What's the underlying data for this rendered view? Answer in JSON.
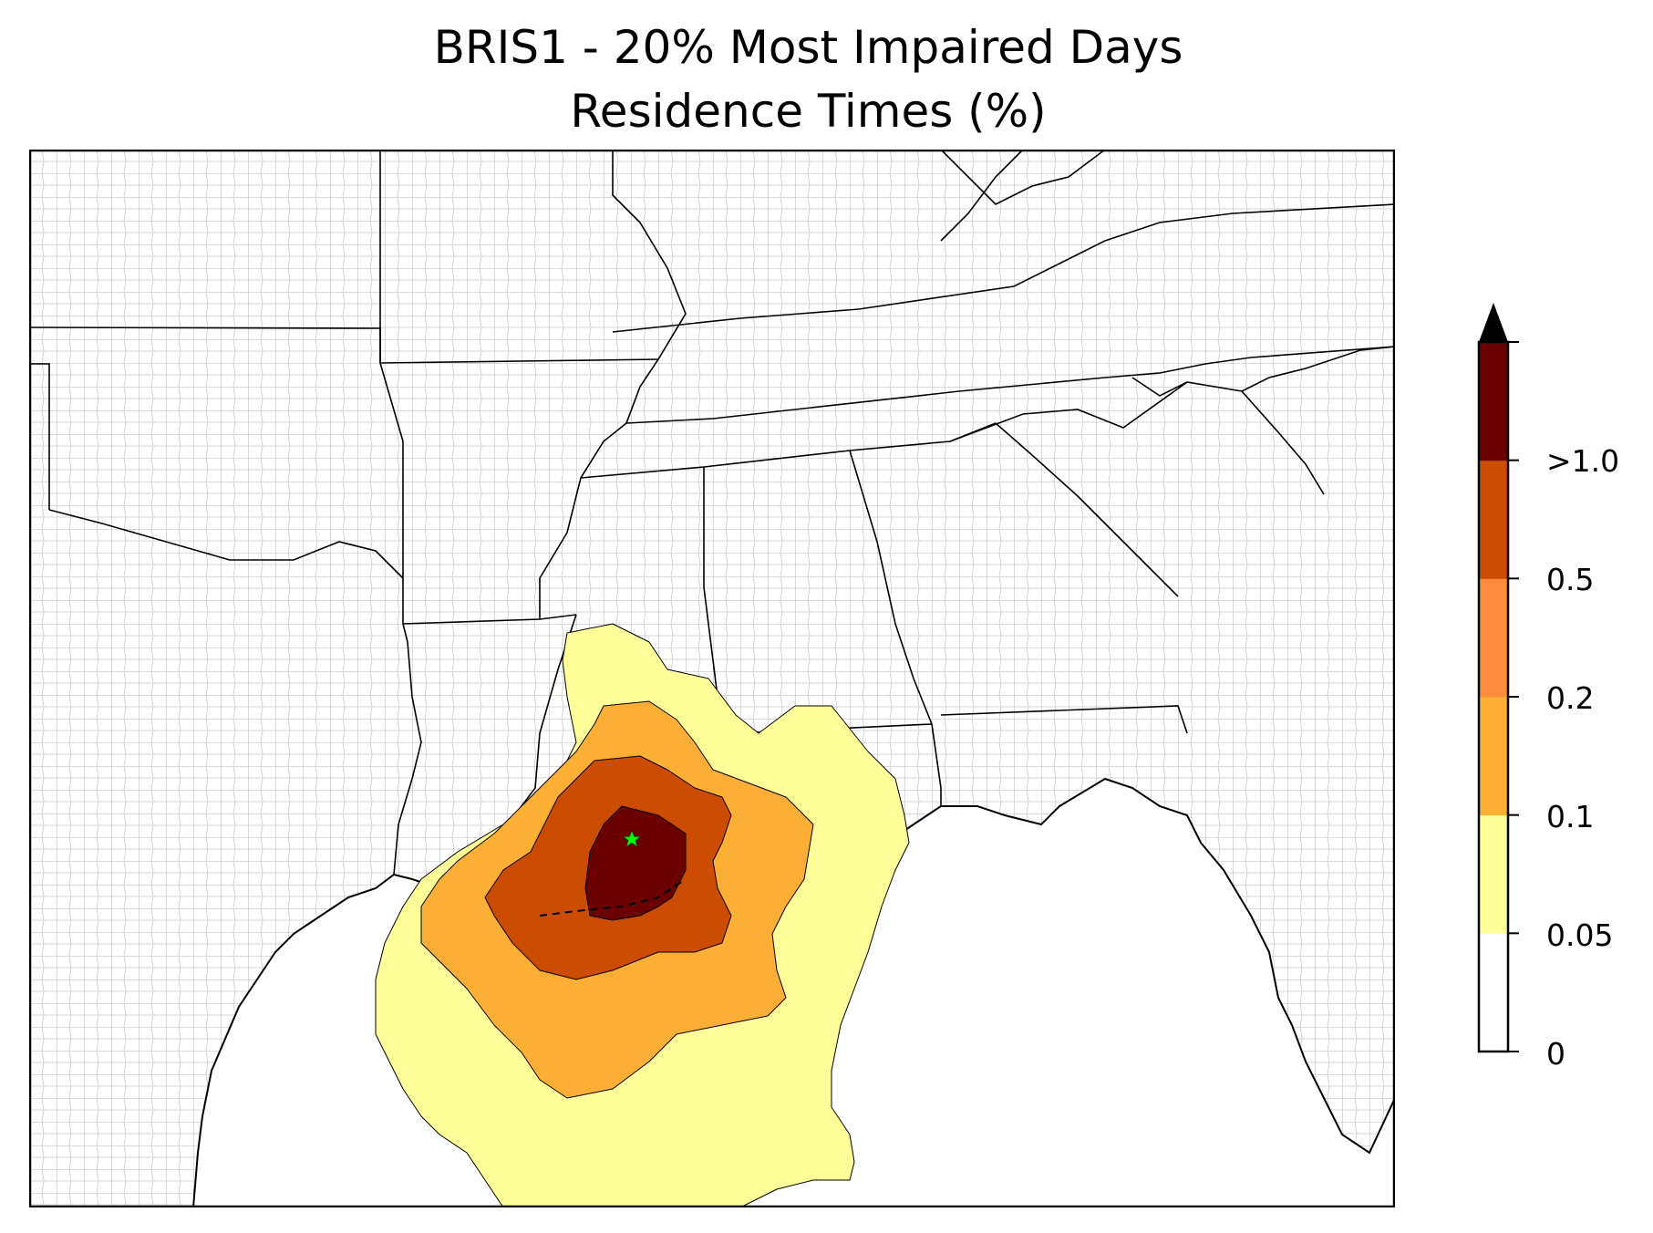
{
  "title": {
    "line1": "BRIS1 - 20% Most Impaired Days",
    "line2": "Residence Times (%)"
  },
  "map": {
    "region": "Southeastern United States and Gulf of Mexico",
    "receptor_marker": {
      "symbol": "star",
      "color": "#00ff00"
    },
    "contour_fill_colors": {
      "0.05-0.1": "#ffff99",
      "0.1-0.2": "#fdae35",
      "0.2-0.5": "#cc4c02",
      "0.5-1.0": "#6b0000",
      ">1.0": "#000000"
    }
  },
  "colorbar": {
    "extend": "max",
    "tick_labels": [
      "0",
      "0.05",
      "0.1",
      "0.2",
      "0.5",
      ">1.0"
    ],
    "colors": [
      "#ffffff",
      "#ffff99",
      "#fdae35",
      "#fd8d3c",
      "#cc4c02",
      "#6b0000"
    ],
    "extend_color": "#000000"
  }
}
